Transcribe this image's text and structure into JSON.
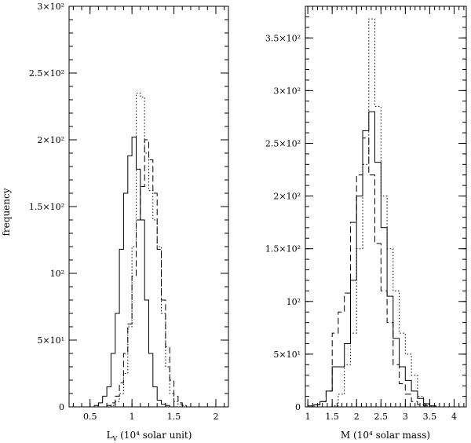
{
  "figure": {
    "ylabel": "frequency"
  },
  "chart_data": [
    {
      "type": "histogram",
      "xlabel_main": "L",
      "xlabel_sub": "V",
      "xlabel_rest": "  (10⁴ solar unit)",
      "xlim": [
        0.25,
        2.15
      ],
      "ylim": [
        0,
        300
      ],
      "x_ticks": [
        0.5,
        1,
        1.5,
        2
      ],
      "x_tick_labels": [
        "0.5",
        "1",
        "1.5",
        "2"
      ],
      "y_ticks": [
        0,
        50,
        100,
        150,
        200,
        250,
        300
      ],
      "y_tick_labels": [
        "0",
        "5×10¹",
        "10²",
        "1.5×10²",
        "2×10²",
        "2.5×10²",
        "3×10²"
      ],
      "bin_width": 0.05,
      "series": [
        {
          "style": "solid",
          "bin_starts": [
            0.55,
            0.6,
            0.65,
            0.7,
            0.75,
            0.8,
            0.85,
            0.9,
            0.95,
            1.0,
            1.05,
            1.1,
            1.15,
            1.2,
            1.25,
            1.3,
            1.35,
            1.4,
            1.45
          ],
          "values": [
            1,
            3,
            8,
            15,
            40,
            70,
            118,
            160,
            188,
            202,
            178,
            140,
            80,
            40,
            15,
            5,
            2,
            1,
            0
          ]
        },
        {
          "style": "dashed",
          "bin_starts": [
            0.7,
            0.75,
            0.8,
            0.85,
            0.9,
            0.95,
            1.0,
            1.05,
            1.1,
            1.15,
            1.2,
            1.25,
            1.3,
            1.35,
            1.4,
            1.45,
            1.5,
            1.55,
            1.6
          ],
          "values": [
            1,
            3,
            8,
            18,
            40,
            62,
            98,
            140,
            165,
            200,
            185,
            160,
            118,
            80,
            45,
            20,
            8,
            3,
            1
          ]
        },
        {
          "style": "dotted",
          "bin_starts": [
            0.75,
            0.8,
            0.85,
            0.9,
            0.95,
            1.0,
            1.05,
            1.1,
            1.15,
            1.2,
            1.25,
            1.3,
            1.35,
            1.4,
            1.45,
            1.5,
            1.55,
            1.6
          ],
          "values": [
            1,
            4,
            10,
            25,
            60,
            120,
            235,
            232,
            190,
            162,
            140,
            120,
            70,
            30,
            10,
            4,
            2,
            1
          ]
        }
      ]
    },
    {
      "type": "histogram",
      "xlabel_main": "M  (10⁴ solar mass)",
      "xlim": [
        0.95,
        4.25
      ],
      "ylim": [
        0,
        380
      ],
      "x_ticks": [
        1,
        1.5,
        2,
        2.5,
        3,
        3.5,
        4
      ],
      "x_tick_labels": [
        "1",
        "1.5",
        "2",
        "2.5",
        "3",
        "3.5",
        "4"
      ],
      "y_ticks": [
        0,
        50,
        100,
        150,
        200,
        250,
        300,
        350
      ],
      "y_tick_labels": [
        "0",
        "5×10¹",
        "10²",
        "1.5×10²",
        "2×10²",
        "2.5×10²",
        "3×10²",
        "3.5×10²"
      ],
      "bin_width": 0.125,
      "series": [
        {
          "style": "solid",
          "bin_starts": [
            1.125,
            1.25,
            1.375,
            1.5,
            1.625,
            1.75,
            1.875,
            2.0,
            2.125,
            2.25,
            2.375,
            2.5,
            2.625,
            2.75,
            2.875,
            3.0,
            3.125,
            3.25,
            3.375,
            3.5,
            3.625
          ],
          "values": [
            2,
            5,
            15,
            38,
            38,
            60,
            120,
            200,
            262,
            280,
            232,
            170,
            105,
            65,
            38,
            25,
            15,
            8,
            3,
            1,
            0
          ]
        },
        {
          "style": "dashed",
          "bin_starts": [
            1.0,
            1.125,
            1.25,
            1.375,
            1.5,
            1.625,
            1.75,
            1.875,
            2.0,
            2.125,
            2.25,
            2.375,
            2.5,
            2.625,
            2.75,
            2.875,
            3.0,
            3.125,
            3.25,
            3.375
          ],
          "values": [
            1,
            2,
            5,
            15,
            70,
            90,
            108,
            175,
            220,
            255,
            220,
            155,
            110,
            80,
            40,
            22,
            12,
            5,
            2,
            1
          ]
        },
        {
          "style": "dotted",
          "bin_starts": [
            1.5,
            1.625,
            1.75,
            1.875,
            2.0,
            2.125,
            2.25,
            2.375,
            2.5,
            2.625,
            2.75,
            2.875,
            3.0,
            3.125,
            3.25,
            3.375,
            3.5
          ],
          "values": [
            1,
            12,
            40,
            70,
            150,
            230,
            368,
            285,
            200,
            150,
            110,
            70,
            50,
            30,
            10,
            2,
            1
          ]
        }
      ]
    }
  ]
}
